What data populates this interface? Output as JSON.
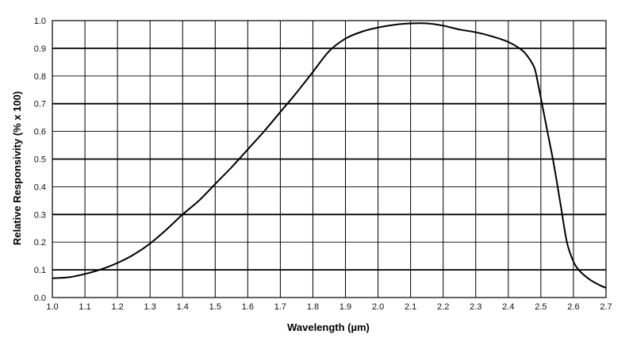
{
  "chart_data": {
    "type": "line",
    "title": "",
    "xlabel": "Wavelength  (µm)",
    "ylabel": "Relative Responsivity  (% x 100)",
    "xlim": [
      1.0,
      2.7
    ],
    "ylim": [
      0.0,
      1.0
    ],
    "grid": true,
    "x_ticks": [
      "1.0",
      "1.1",
      "1.2",
      "1.3",
      "1.4",
      "1.5",
      "1.6",
      "1.7",
      "1.8",
      "1.9",
      "2.0",
      "2.1",
      "2.2",
      "2.3",
      "2.4",
      "2.5",
      "2.6",
      "2.7"
    ],
    "y_ticks": [
      "0.0",
      "0.1",
      "0.2",
      "0.3",
      "0.4",
      "0.5",
      "0.6",
      "0.7",
      "0.8",
      "0.9",
      "1.0"
    ],
    "series": [
      {
        "color": "#000000",
        "points": [
          [
            1.0,
            0.07
          ],
          [
            1.05,
            0.073
          ],
          [
            1.1,
            0.085
          ],
          [
            1.15,
            0.102
          ],
          [
            1.2,
            0.125
          ],
          [
            1.25,
            0.155
          ],
          [
            1.3,
            0.195
          ],
          [
            1.35,
            0.245
          ],
          [
            1.4,
            0.3
          ],
          [
            1.45,
            0.35
          ],
          [
            1.5,
            0.41
          ],
          [
            1.55,
            0.47
          ],
          [
            1.6,
            0.535
          ],
          [
            1.65,
            0.6
          ],
          [
            1.7,
            0.67
          ],
          [
            1.75,
            0.74
          ],
          [
            1.8,
            0.815
          ],
          [
            1.85,
            0.89
          ],
          [
            1.9,
            0.935
          ],
          [
            1.95,
            0.96
          ],
          [
            2.0,
            0.975
          ],
          [
            2.05,
            0.985
          ],
          [
            2.1,
            0.99
          ],
          [
            2.15,
            0.99
          ],
          [
            2.2,
            0.982
          ],
          [
            2.25,
            0.968
          ],
          [
            2.3,
            0.958
          ],
          [
            2.35,
            0.943
          ],
          [
            2.4,
            0.923
          ],
          [
            2.44,
            0.895
          ],
          [
            2.46,
            0.87
          ],
          [
            2.48,
            0.83
          ],
          [
            2.49,
            0.78
          ],
          [
            2.5,
            0.72
          ],
          [
            2.52,
            0.6
          ],
          [
            2.54,
            0.48
          ],
          [
            2.56,
            0.34
          ],
          [
            2.58,
            0.2
          ],
          [
            2.6,
            0.13
          ],
          [
            2.62,
            0.095
          ],
          [
            2.65,
            0.065
          ],
          [
            2.68,
            0.045
          ],
          [
            2.7,
            0.035
          ]
        ]
      }
    ]
  }
}
